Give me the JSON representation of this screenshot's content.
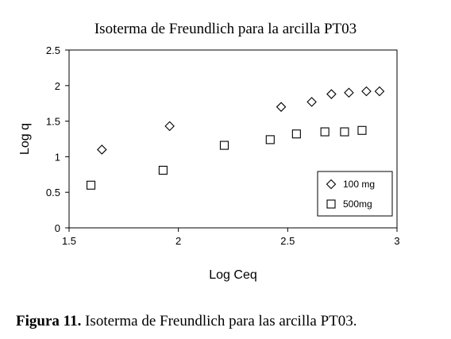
{
  "chart_data": {
    "type": "scatter",
    "title": "Isoterma de Freundlich para la arcilla PT03",
    "xlabel": "Log Ceq",
    "ylabel": "Log q",
    "xlim": [
      1.5,
      3
    ],
    "ylim": [
      0,
      2.5
    ],
    "xticks": [
      "1.5",
      "2",
      "2.5",
      "3"
    ],
    "yticks": [
      "0",
      "0.5",
      "1",
      "1.5",
      "2",
      "2.5"
    ],
    "grid": false,
    "legend_position": "bottom-right",
    "series": [
      {
        "name": "100 mg",
        "marker": "diamond",
        "x": [
          1.65,
          1.96,
          2.47,
          2.61,
          2.7,
          2.78,
          2.86,
          2.92
        ],
        "y": [
          1.1,
          1.43,
          1.7,
          1.77,
          1.88,
          1.9,
          1.92,
          1.92
        ]
      },
      {
        "name": "500mg",
        "marker": "square",
        "x": [
          1.6,
          1.93,
          2.21,
          2.42,
          2.54,
          2.67,
          2.76,
          2.84
        ],
        "y": [
          0.6,
          0.81,
          1.16,
          1.24,
          1.32,
          1.35,
          1.35,
          1.37
        ]
      }
    ]
  },
  "caption": {
    "label": "Figura 11.",
    "text": "Isoterma de Freundlich para las arcilla PT03."
  }
}
